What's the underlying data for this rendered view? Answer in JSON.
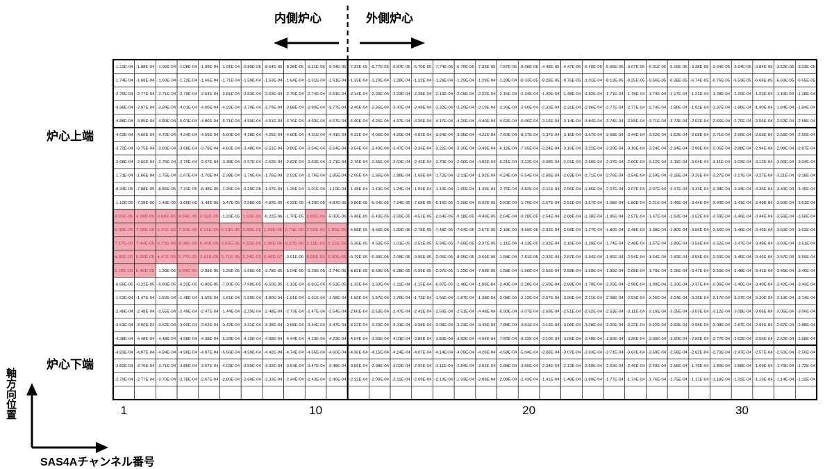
{
  "chart_data": {
    "type": "heatmap",
    "header_inner": "内側炉心",
    "header_outer": "外側炉心",
    "row_label_top": "炉心上端",
    "row_label_bottom": "炉心下端",
    "ylabel": "軸方向位置",
    "xlabel": "SAS4Aチャンネル番号",
    "x_ticks": [
      "1",
      "10",
      "20",
      "30"
    ],
    "x_tick_channels": [
      1,
      10,
      20,
      30
    ],
    "n_cols": 33,
    "n_rows": 25,
    "inner_outer_boundary_after_col": 11,
    "band_boundaries_after_row": [
      5,
      21
    ],
    "highlight_color": "#f3a9b3",
    "rows": [
      [
        "-1.11E-04",
        "-1.08E-04",
        "-1.05E-04",
        "-1.08E-04",
        "-1.09E-04",
        "-1.01E-04",
        "-9.80E-05",
        "-8.64E-05",
        "-8.28E-05",
        "-9.11E-05",
        "-9.04E-05",
        "-7.33E-05",
        "-6.77E-05",
        "-6.87E-05",
        "-6.70E-05",
        "-7.74E-05",
        "-6.70E-05",
        "-7.33E-05",
        "-7.87E-05",
        "-8.08E-05",
        "-4.48E-05",
        "-4.47E-05",
        "-5.40E-05",
        "-5.55E-05",
        "-9.07E-05",
        "-5.31E-05",
        "-5.16E-05",
        "-3.38E-05",
        "-3.64E-05",
        "-3.64E-05",
        "-3.84E-05",
        "-3.52E-05",
        "-3.33E-05"
      ],
      [
        "-1.74E-04",
        "-1.68E-04",
        "-1.60E-04",
        "-1.72E-04",
        "-1.66E-04",
        "-1.71E-04",
        "-1.59E-04",
        "-1.53E-04",
        "-1.64E-04",
        "-1.61E-04",
        "-1.51E-04",
        "-1.33E-04",
        "-1.23E-04",
        "-1.28E-04",
        "-1.22E-04",
        "-1.28E-04",
        "-1.29E-04",
        "-1.28E-04",
        "-1.28E-04",
        "-8.33E-05",
        "-8.28E-05",
        "-9.76E-05",
        "-1.01E-04",
        "-8.13E-05",
        "-9.25E-05",
        "-9.66E-05",
        "-6.38E-05",
        "-6.74E-05",
        "-6.76E-05",
        "-6.53E-05",
        "-6.66E-05",
        "-6.63E-05",
        "-6.55E-05"
      ],
      [
        "-2.76E-04",
        "-2.77E-04",
        "-2.71E-04",
        "-2.79E-04",
        "-2.64E-04",
        "-2.81E-04",
        "-2.53E-04",
        "-2.63E-04",
        "-2.76E-04",
        "-2.74E-04",
        "-2.61E-04",
        "-2.14E-04",
        "-2.03E-04",
        "-2.23E-04",
        "-2.28E-04",
        "-2.13E-04",
        "-2.09E-04",
        "-2.22E-04",
        "-2.15E-04",
        "-2.34E-04",
        "-1.49E-04",
        "-1.48E-04",
        "-1.82E-04",
        "-1.71E-04",
        "-1.78E-04",
        "-1.74E-04",
        "-1.17E-04",
        "-1.21E-04",
        "-1.28E-04",
        "-1.20E-04",
        "-1.23E-04",
        "-1.16E-04",
        "-1.18E-04"
      ],
      [
        "-3.98E-04",
        "-3.97E-04",
        "-3.84E-04",
        "-4.01E-04",
        "-4.00E-04",
        "-4.23E-04",
        "-3.70E-04",
        "-3.79E-04",
        "-3.88E-04",
        "-3.83E-04",
        "-3.77E-04",
        "-3.48E-04",
        "-3.35E-04",
        "-3.47E-04",
        "-3.48E-04",
        "-3.32E-04",
        "-3.20E-04",
        "-3.19E-04",
        "-3.36E-04",
        "-3.66E-04",
        "-2.33E-04",
        "-2.31E-04",
        "-2.86E-04",
        "-2.77E-04",
        "-2.77E-04",
        "-2.74E-04",
        "-1.88E-04",
        "-1.92E-04",
        "-1.97E-04",
        "-1.88E-04",
        "-1.90E-04",
        "-1.84E-04",
        "-1.84E-04"
      ],
      [
        "-4.88E-04",
        "-4.95E-04",
        "-4.80E-04",
        "-5.01E-04",
        "-4.80E-04",
        "-5.71E-04",
        "-4.59E-04",
        "-4.51E-04",
        "-4.76E-04",
        "-4.63E-04",
        "-4.67E-04",
        "-4.40E-04",
        "-4.25E-04",
        "-4.37E-04",
        "-4.36E-04",
        "-4.17E-04",
        "-4.20E-04",
        "-4.40E-04",
        "-4.62E-04",
        "-5.06E-04",
        "-3.16E-04",
        "-3.14E-04",
        "-3.84E-04",
        "-3.74E-04",
        "-3.68E-04",
        "-3.71E-04",
        "-3.73E-04",
        "-2.62E-04",
        "-2.66E-04",
        "-2.76E-04",
        "-2.56E-04",
        "-2.62E-04",
        "-2.58E-04"
      ],
      [
        "-4.63E-04",
        "-4.66E-04",
        "-4.72E-04",
        "-4.34E-04",
        "-4.59E-04",
        "-5.60E-04",
        "-4.28E-04",
        "-4.25E-04",
        "-4.60E-04",
        "-4.31E-04",
        "-4.41E-04",
        "-4.22E-04",
        "-4.06E-04",
        "-4.20E-04",
        "-4.03E-04",
        "-3.94E-04",
        "-3.95E-04",
        "-4.21E-04",
        "-7.60E-04",
        "-8.37E-04",
        "-3.37E-04",
        "-3.15E-04",
        "-3.57E-04",
        "-3.58E-04",
        "-3.44E-04",
        "-3.52E-04",
        "-3.63E-04",
        "-2.68E-04",
        "-2.71E-04",
        "-2.66E-04",
        "-2.63E-04",
        "-2.66E-04",
        "-2.60E-04"
      ],
      [
        "-3.72E-04",
        "-3.75E-04",
        "-3.83E-04",
        "-3.68E-04",
        "-3.78E-04",
        "-4.60E-04",
        "-3.48E-04",
        "-3.51E-04",
        "-3.80E-04",
        "-3.54E-04",
        "-3.64E-04",
        "-3.54E-04",
        "-3.43E-04",
        "-3.47E-04",
        "-3.36E-04",
        "-3.22E-04",
        "-3.30E-04",
        "-3.48E-04",
        "-6.12E-04",
        "-7.65E-04",
        "-3.24E-04",
        "-3.16E-04",
        "-3.22E-04",
        "-3.29E-04",
        "-3.18E-04",
        "-3.24E-04",
        "-2.94E-04",
        "-2.98E-04",
        "-3.05E-04",
        "-2.88E-04",
        "-2.94E-04",
        "-2.88E-04",
        "-2.87E-04"
      ],
      [
        "-2.68E-04",
        "-2.66E-04",
        "-2.75E-04",
        "-2.70E-04",
        "-2.67E-04",
        "-3.38E-04",
        "-2.57E-04",
        "-2.62E-04",
        "-2.82E-04",
        "-2.63E-04",
        "-2.71E-04",
        "-2.76E-04",
        "-2.65E-04",
        "-2.63E-04",
        "-2.43E-04",
        "-2.70E-04",
        "-2.66E-04",
        "-4.82E-04",
        "-6.21E-04",
        "-3.12E-04",
        "-3.08E-04",
        "-2.91E-04",
        "-2.50E-04",
        "-2.37E-04",
        "-2.66E-04",
        "-3.12E-04",
        "-3.11E-04",
        "-3.04E-04",
        "-3.11E-04",
        "-3.03E-04",
        "-3.12E-04",
        "-3.06E-04",
        "-3.04E-04"
      ],
      [
        "-1.71E-04",
        "-1.66E-04",
        "-1.75E-04",
        "-1.67E-04",
        "-1.70E-04",
        "-2.38E-04",
        "-1.70E-04",
        "-1.76E-04",
        "-2.02E-04",
        "-1.76E-04",
        "-1.85E-04",
        "-2.05E-04",
        "-1.95E-04",
        "-1.88E-04",
        "-1.66E-04",
        "-1.72E-04",
        "-2.11E-04",
        "-1.92E-04",
        "-4.24E-04",
        "-5.54E-04",
        "-2.68E-04",
        "-2.63E-04",
        "-2.71E-04",
        "-2.76E-04",
        "-2.54E-04",
        "-2.59E-04",
        "-3.18E-04",
        "-3.25E-04",
        "-3.27E-04",
        "-3.17E-04",
        "-3.27E-04",
        "-3.21E-04",
        "-3.18E-04"
      ],
      [
        "-8.34E-05",
        "-7.88E-05",
        "-8.86E-05",
        "-7.31E-05",
        "-8.48E-05",
        "-1.25E-04",
        "-9.29E-05",
        "-1.07E-04",
        "-1.25E-04",
        "-1.01E-04",
        "-1.10E-04",
        "-1.48E-04",
        "-1.43E-04",
        "-1.24E-04",
        "-1.06E-04",
        "-1.10E-04",
        "-1.60E-04",
        "-1.39E-04",
        "-2.76E-04",
        "-3.82E-04",
        "-3.11E-04",
        "-2.96E-04",
        "-1.85E-04",
        "-2.07E-04",
        "-2.07E-04",
        "-2.07E-04",
        "-3.37E-04",
        "-3.33E-04",
        "-3.38E-04",
        "-3.34E-04",
        "-3.36E-04",
        "-3.40E-04",
        "-3.40E-04"
      ],
      [
        "-1.10E-05",
        "-7.38E-06",
        "-1.48E-05",
        "-3.65E-06",
        "-1.48E-05",
        "-3.47E-05",
        "-2.58E-05",
        "-4.82E-05",
        "-4.22E-05",
        "-4.20E-05",
        "-4.87E-05",
        "-9.80E-05",
        "-5.64E-05",
        "-7.24E-05",
        "-7.08E-05",
        "-6.15E-05",
        "-1.20E-04",
        "-8.02E-05",
        "-2.50E-04",
        "-1.76E-04",
        "-2.57E-04",
        "-2.51E-04",
        "-1.57E-04",
        "-1.08E-04",
        "-1.80E-04",
        "-2.21E-04",
        "-3.46E-04",
        "-3.44E-04",
        "-3.40E-04",
        "-3.41E-04",
        "-3.49E-04",
        "-3.50E-04",
        "-3.51E-04"
      ],
      [
        "4.09E-05",
        "4.38E-05",
        "3.86E-05",
        "4.54E-05",
        "3.52E-05",
        "-1.23E-05",
        "1.53E-05",
        "-6.22E-06",
        "-1.70E-05",
        "1.80E-06",
        "-5.00E-06",
        "-6.48E-05",
        "-5.43E-05",
        "-3.59E-05",
        "-4.51E-05",
        "-2.64E-05",
        "-9.18E-05",
        "-4.48E-05",
        "-2.64E-04",
        "-9.28E-05",
        "-2.54E-04",
        "-2.08E-04",
        "-1.38E-04",
        "-1.86E-04",
        "-2.57E-04",
        "-1.67E-04",
        "-1.93E-04",
        "-3.52E-04",
        "-3.59E-04",
        "-3.49E-04",
        "-3.44E-04",
        "-3.56E-04",
        "-3.58E-04"
      ],
      [
        "6.09E-05",
        "7.18E-05",
        "6.44E-05",
        "7.60E-05",
        "6.21E-05",
        "6.13E-05",
        "3.89E-05",
        "1.69E-06",
        "6.74E-06",
        "2.59E-05",
        "1.85E-05",
        "-4.58E-05",
        "-4.66E-05",
        "-1.82E-05",
        "-2.78E-05",
        "-7.48E-05",
        "-7.64E-05",
        "-2.57E-05",
        "-2.18E-04",
        "-4.59E-05",
        "-2.33E-04",
        "-2.08E-04",
        "-1.27E-04",
        "-1.80E-04",
        "-2.48E-04",
        "-1.38E-04",
        "-1.80E-04",
        "-3.56E-04",
        "-3.56E-04",
        "-3.46E-04",
        "-3.46E-04",
        "-3.60E-04",
        "-3.62E-04"
      ],
      [
        "7.17E-05",
        "7.44E-05",
        "6.73E-05",
        "8.08E-05",
        "6.49E-05",
        "6.85E-05",
        "4.22E-05",
        "1.96E-06",
        "8.27E-06",
        "2.11E-05",
        "2.11E-05",
        "-5.36E-05",
        "-4.53E-05",
        "-1.01E-05",
        "-2.51E-05",
        "-5.94E-05",
        "-7.69E-05",
        "-2.37E-05",
        "-1.11E-04",
        "-4.13E-05",
        "-2.32E-04",
        "-2.16E-04",
        "-1.29E-04",
        "-1.74E-04",
        "-2.48E-04",
        "-1.57E-04",
        "-1.89E-04",
        "-3.56E-04",
        "-3.52E-04",
        "-3.47E-04",
        "-3.48E-04",
        "-3.60E-04",
        "-3.61E-04"
      ],
      [
        "4.89E-05",
        "5.28E-05",
        "4.47E-05",
        "5.77E-05",
        "4.31E-05",
        "5.71E-05",
        "2.24E-05",
        "6.48E-07",
        "-3.01E-05",
        "8.80E-06",
        "2.30E-06",
        "-6.79E-05",
        "-5.90E-05",
        "-2.68E-05",
        "-3.95E-05",
        "-2.06E-05",
        "-8.65E-05",
        "-3.69E-05",
        "-1.58E-04",
        "-7.81E-05",
        "-2.33E-04",
        "-2.87E-04",
        "-1.34E-04",
        "-1.86E-04",
        "-2.54E-04",
        "-1.64E-04",
        "-1.83E-04",
        "-3.55E-04",
        "-3.50E-04",
        "-3.46E-04",
        "-3.46E-04",
        "-3.57E-04",
        "-3.59E-04"
      ],
      [
        "1.78E-05",
        "5.48E-05",
        "-1.30E-06",
        "9.64E-06",
        "-2.08E-05",
        "-1.25E-05",
        "-1.66E-05",
        "-3.78E-05",
        "-5.04E-05",
        "-3.20E-05",
        "-3.74E-05",
        "-8.82E-05",
        "-8.59E-05",
        "-6.28E-05",
        "-6.99E-05",
        "-2.97E-05",
        "-1.22E-04",
        "-7.08E-05",
        "-1.58E-04",
        "-1.56E-04",
        "-2.55E-04",
        "-2.68E-04",
        "-1.59E-04",
        "-1.85E-04",
        "-2.68E-04",
        "-1.70E-04",
        "-2.06E-04",
        "-3.47E-04",
        "-3.50E-04",
        "-3.48E-04",
        "-3.41E-04",
        "-3.46E-04",
        "-3.46E-04"
      ],
      [
        "-6.66E-05",
        "-6.22E-05",
        "-6.80E-05",
        "-6.22E-05",
        "-6.80E-05",
        "-7.90E-05",
        "-7.60E-05",
        "-9.50E-05",
        "-1.13E-04",
        "-8.81E-05",
        "-9.53E-05",
        "-1.33E-04",
        "-1.33E-04",
        "-1.11E-04",
        "-1.15E-04",
        "-6.87E-05",
        "-1.46E-04",
        "-1.08E-04",
        "-2.48E-04",
        "-2.28E-04",
        "-2.59E-04",
        "-2.68E-04",
        "-1.70E-04",
        "-2.03E-04",
        "-2.98E-04",
        "-1.99E-04",
        "-2.33E-04",
        "-3.37E-04",
        "-3.36E-04",
        "-3.45E-04",
        "-3.49E-04",
        "-3.42E-04",
        "-3.43E-04"
      ],
      [
        "-1.52E-04",
        "-1.47E-04",
        "-1.56E-04",
        "-1.48E-04",
        "-1.55E-04",
        "-1.61E-04",
        "-1.59E-04",
        "-1.80E-04",
        "-1.91E-04",
        "-1.61E-04",
        "-1.68E-04",
        "-1.99E-04",
        "-1.87E-04",
        "-1.76E-04",
        "-1.72E-04",
        "-1.56E-04",
        "-1.87E-04",
        "-1.38E-04",
        "-3.08E-04",
        "-3.12E-04",
        "-2.57E-04",
        "-3.00E-04",
        "-2.11E-04",
        "-2.08E-04",
        "-2.53E-04",
        "-3.25E-04",
        "-3.24E-04",
        "-3.26E-04",
        "-3.17E-04",
        "-3.27E-04",
        "-3.20E-04",
        "-3.13E-04",
        "-3.14E-04"
      ],
      [
        "-2.48E-04",
        "-2.48E-04",
        "-2.55E-04",
        "-2.49E-04",
        "-2.47E-04",
        "-1.44E-04",
        "-2.29E-04",
        "-2.48E-04",
        "-2.73E-04",
        "-2.47E-04",
        "-2.54E-04",
        "-2.60E-04",
        "-2.53E-04",
        "-2.47E-04",
        "-2.42E-04",
        "-2.59E-04",
        "-2.51E-04",
        "-4.48E-04",
        "-5.90E-04",
        "-3.07E-04",
        "-2.69E-04",
        "-2.51E-04",
        "-2.52E-04",
        "-2.53E-04",
        "-3.11E-04",
        "-3.10E-04",
        "-3.05E-04",
        "-3.03E-04",
        "-3.12E-04",
        "-3.08E-04",
        "-3.06E-04",
        "-3.05E-04",
        "-3.06E-04"
      ],
      [
        "-3.51E-04",
        "-3.50E-04",
        "-3.62E-04",
        "-3.60E-04",
        "-3.52E-04",
        "-3.42E-04",
        "-3.31E-04",
        "-3.38E-04",
        "-3.68E-04",
        "-3.44E-04",
        "-3.47E-04",
        "-3.22E-04",
        "-3.23E-04",
        "-3.31E-04",
        "-3.38E-04",
        "-3.08E-04",
        "-3.23E-04",
        "-3.45E-04",
        "-7.88E-04",
        "-3.51E-04",
        "-3.13E-04",
        "-3.08E-04",
        "-3.28E-04",
        "-3.20E-04",
        "-3.22E-04",
        "-3.22E-04",
        "-2.93E-04",
        "-2.98E-04",
        "-3.08E-04",
        "-2.87E-04",
        "-2.94E-04",
        "-2.87E-04",
        "-2.88E-04"
      ],
      [
        "-4.38E-04",
        "-4.48E-04",
        "-4.48E-04",
        "-4.58E-04",
        "-4.38E-04",
        "-5.33E-04",
        "-4.10E-04",
        "-4.08E-04",
        "-4.44E-04",
        "-4.13E-04",
        "-4.23E-04",
        "-4.04E-04",
        "-3.93E-04",
        "-4.01E-04",
        "-3.86E-04",
        "-3.80E-04",
        "-3.82E-04",
        "-4.04E-04",
        "-7.66E-04",
        "-8.22E-04",
        "-3.10E-04",
        "-3.05E-04",
        "-3.48E-04",
        "-3.50E-04",
        "-3.35E-04",
        "-3.39E-04",
        "-3.60E-04",
        "-2.66E-04",
        "-2.77E-04",
        "-2.62E-04",
        "-2.56E-04",
        "-2.62E-04",
        "-2.58E-04"
      ],
      [
        "-4.83E-04",
        "-4.87E-04",
        "-4.84E-04",
        "-4.98E-04",
        "-4.87E-04",
        "-5.56E-04",
        "-4.59E-04",
        "-4.42E-04",
        "-4.74E-04",
        "-4.55E-04",
        "-4.60E-04",
        "-4.36E-04",
        "-4.15E-04",
        "-4.24E-04",
        "-4.07E-04",
        "-4.14E-04",
        "-4.09E-04",
        "-4.26E-04",
        "-4.58E-04",
        "-5.04E-04",
        "-3.08E-04",
        "-3.07E-04",
        "-3.83E-04",
        "-3.71E-04",
        "-3.63E-04",
        "-3.69E-04",
        "-2.58E-04",
        "-2.62E-04",
        "-2.70E-04",
        "-2.47E-04",
        "-2.57E-04",
        "-2.50E-04",
        "-2.50E-04"
      ],
      [
        "-3.82E-04",
        "-3.76E-04",
        "-3.71E-04",
        "-3.85E-04",
        "-3.67E-04",
        "-4.03E-04",
        "-3.59E-04",
        "-3.32E-04",
        "-3.54E-04",
        "-3.47E-04",
        "-3.48E-04",
        "-3.06E-04",
        "-2.98E-04",
        "-3.02E-04",
        "-2.92E-04",
        "-3.11E-04",
        "-2.84E-04",
        "-3.01E-04",
        "-2.88E-04",
        "-3.55E-04",
        "-2.34E-04",
        "-2.13E-04",
        "-2.59E-04",
        "-2.63E-04",
        "-2.46E-04",
        "-2.49E-04",
        "-2.55E-04",
        "-1.78E-04",
        "-1.80E-04",
        "-1.88E-04",
        "-1.69E-04",
        "-1.76E-04",
        "-1.72E-04"
      ],
      [
        "-2.79E-04",
        "-2.77E-04",
        "-2.70E-04",
        "-2.78E-04",
        "-2.67E-04",
        "-2.80E-04",
        "-2.60E-04",
        "-2.33E-04",
        "-2.44E-04",
        "-2.43E-04",
        "-2.46E-04",
        "-2.12E-04",
        "-2.03E-04",
        "-2.11E-04",
        "-2.09E-04",
        "-2.13E-04",
        "-1.93E-04",
        "-2.08E-04",
        "-2.08E-04",
        "-2.43E-04",
        "-1.41E-04",
        "-1.48E-04",
        "-1.89E-04",
        "-1.77E-04",
        "-1.74E-04",
        "-1.76E-04",
        "-1.75E-04",
        "-1.17E-04",
        "-1.18E-04",
        "-1.22E-04",
        "-1.13E-04",
        "-1.14E-04",
        "-1.12E-04"
      ],
      [
        "",
        "",
        "",
        "",
        "",
        "",
        "",
        "",
        "",
        "",
        "",
        "",
        "",
        "",
        "",
        "",
        "",
        "",
        "",
        "",
        "",
        "",
        "",
        "",
        "",
        "",
        "",
        "",
        "",
        "",
        "",
        "",
        ""
      ]
    ],
    "highlighted_cells": [
      [
        11,
        0
      ],
      [
        11,
        1
      ],
      [
        11,
        2
      ],
      [
        11,
        3
      ],
      [
        11,
        4
      ],
      [
        11,
        6
      ],
      [
        11,
        9
      ],
      [
        12,
        0
      ],
      [
        12,
        1
      ],
      [
        12,
        2
      ],
      [
        12,
        3
      ],
      [
        12,
        4
      ],
      [
        12,
        5
      ],
      [
        12,
        6
      ],
      [
        12,
        7
      ],
      [
        12,
        8
      ],
      [
        12,
        9
      ],
      [
        12,
        10
      ],
      [
        13,
        0
      ],
      [
        13,
        1
      ],
      [
        13,
        2
      ],
      [
        13,
        3
      ],
      [
        13,
        4
      ],
      [
        13,
        5
      ],
      [
        13,
        6
      ],
      [
        13,
        7
      ],
      [
        13,
        8
      ],
      [
        13,
        9
      ],
      [
        13,
        10
      ],
      [
        14,
        0
      ],
      [
        14,
        1
      ],
      [
        14,
        2
      ],
      [
        14,
        3
      ],
      [
        14,
        4
      ],
      [
        14,
        5
      ],
      [
        14,
        6
      ],
      [
        14,
        7
      ],
      [
        14,
        9
      ],
      [
        14,
        10
      ],
      [
        15,
        0
      ],
      [
        15,
        1
      ],
      [
        15,
        3
      ]
    ]
  }
}
